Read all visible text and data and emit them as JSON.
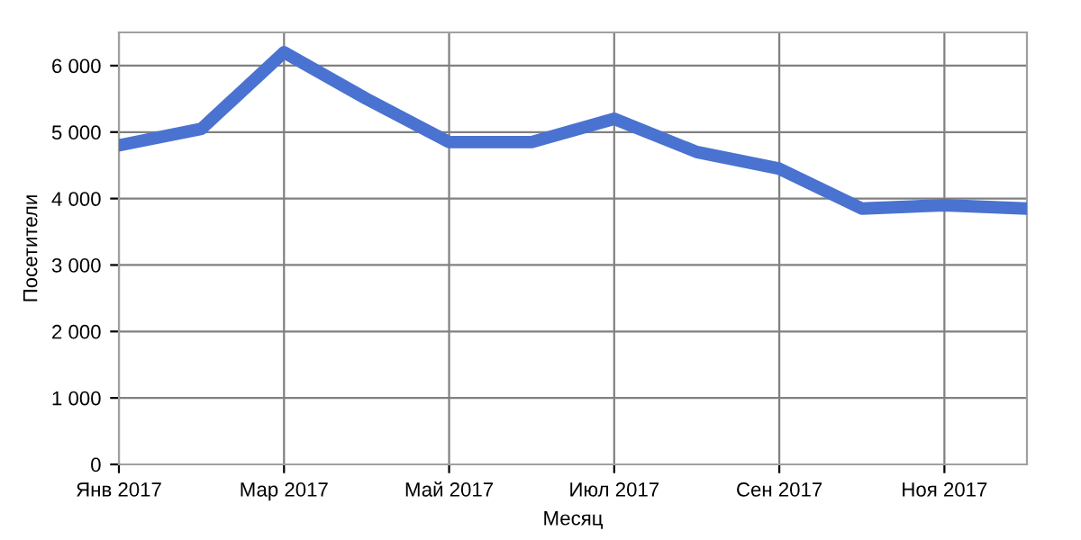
{
  "chart_data": {
    "type": "line",
    "xlabel": "Месяц",
    "ylabel": "Посетители",
    "categories": [
      "Янв 2017",
      null,
      "Мар 2017",
      null,
      "Май 2017",
      null,
      "Июл 2017",
      null,
      "Сен 2017",
      null,
      "Ноя 2017",
      null
    ],
    "series": [
      {
        "color": "#4a72d0",
        "values": [
          4800,
          5050,
          6200,
          5500,
          4850,
          4850,
          5200,
          4700,
          4450,
          3850,
          3900,
          3850
        ]
      }
    ],
    "ylim": [
      0,
      6500
    ],
    "yticks": [
      0,
      {
        "value": 1000,
        "label": "1 000"
      },
      {
        "value": 2000,
        "label": "2 000"
      },
      {
        "value": 3000,
        "label": "3 000"
      },
      {
        "value": 4000,
        "label": "4 000"
      },
      {
        "value": 5000,
        "label": "5 000"
      },
      {
        "value": 6000,
        "label": "6 000"
      }
    ],
    "grid": true,
    "marker": "none",
    "line_style": "solid"
  }
}
